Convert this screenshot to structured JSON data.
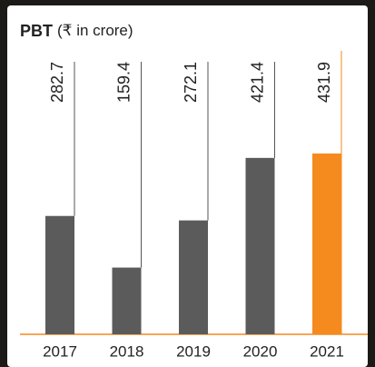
{
  "chart_data": {
    "type": "bar",
    "title": "PBT",
    "subtitle": "(₹ in crore)",
    "categories": [
      "2017",
      "2018",
      "2019",
      "2020",
      "2021"
    ],
    "values": [
      282.7,
      159.4,
      272.1,
      421.4,
      431.9
    ],
    "colors": [
      "#5b5b5b",
      "#5b5b5b",
      "#5b5b5b",
      "#5b5b5b",
      "#f58a1f"
    ]
  }
}
